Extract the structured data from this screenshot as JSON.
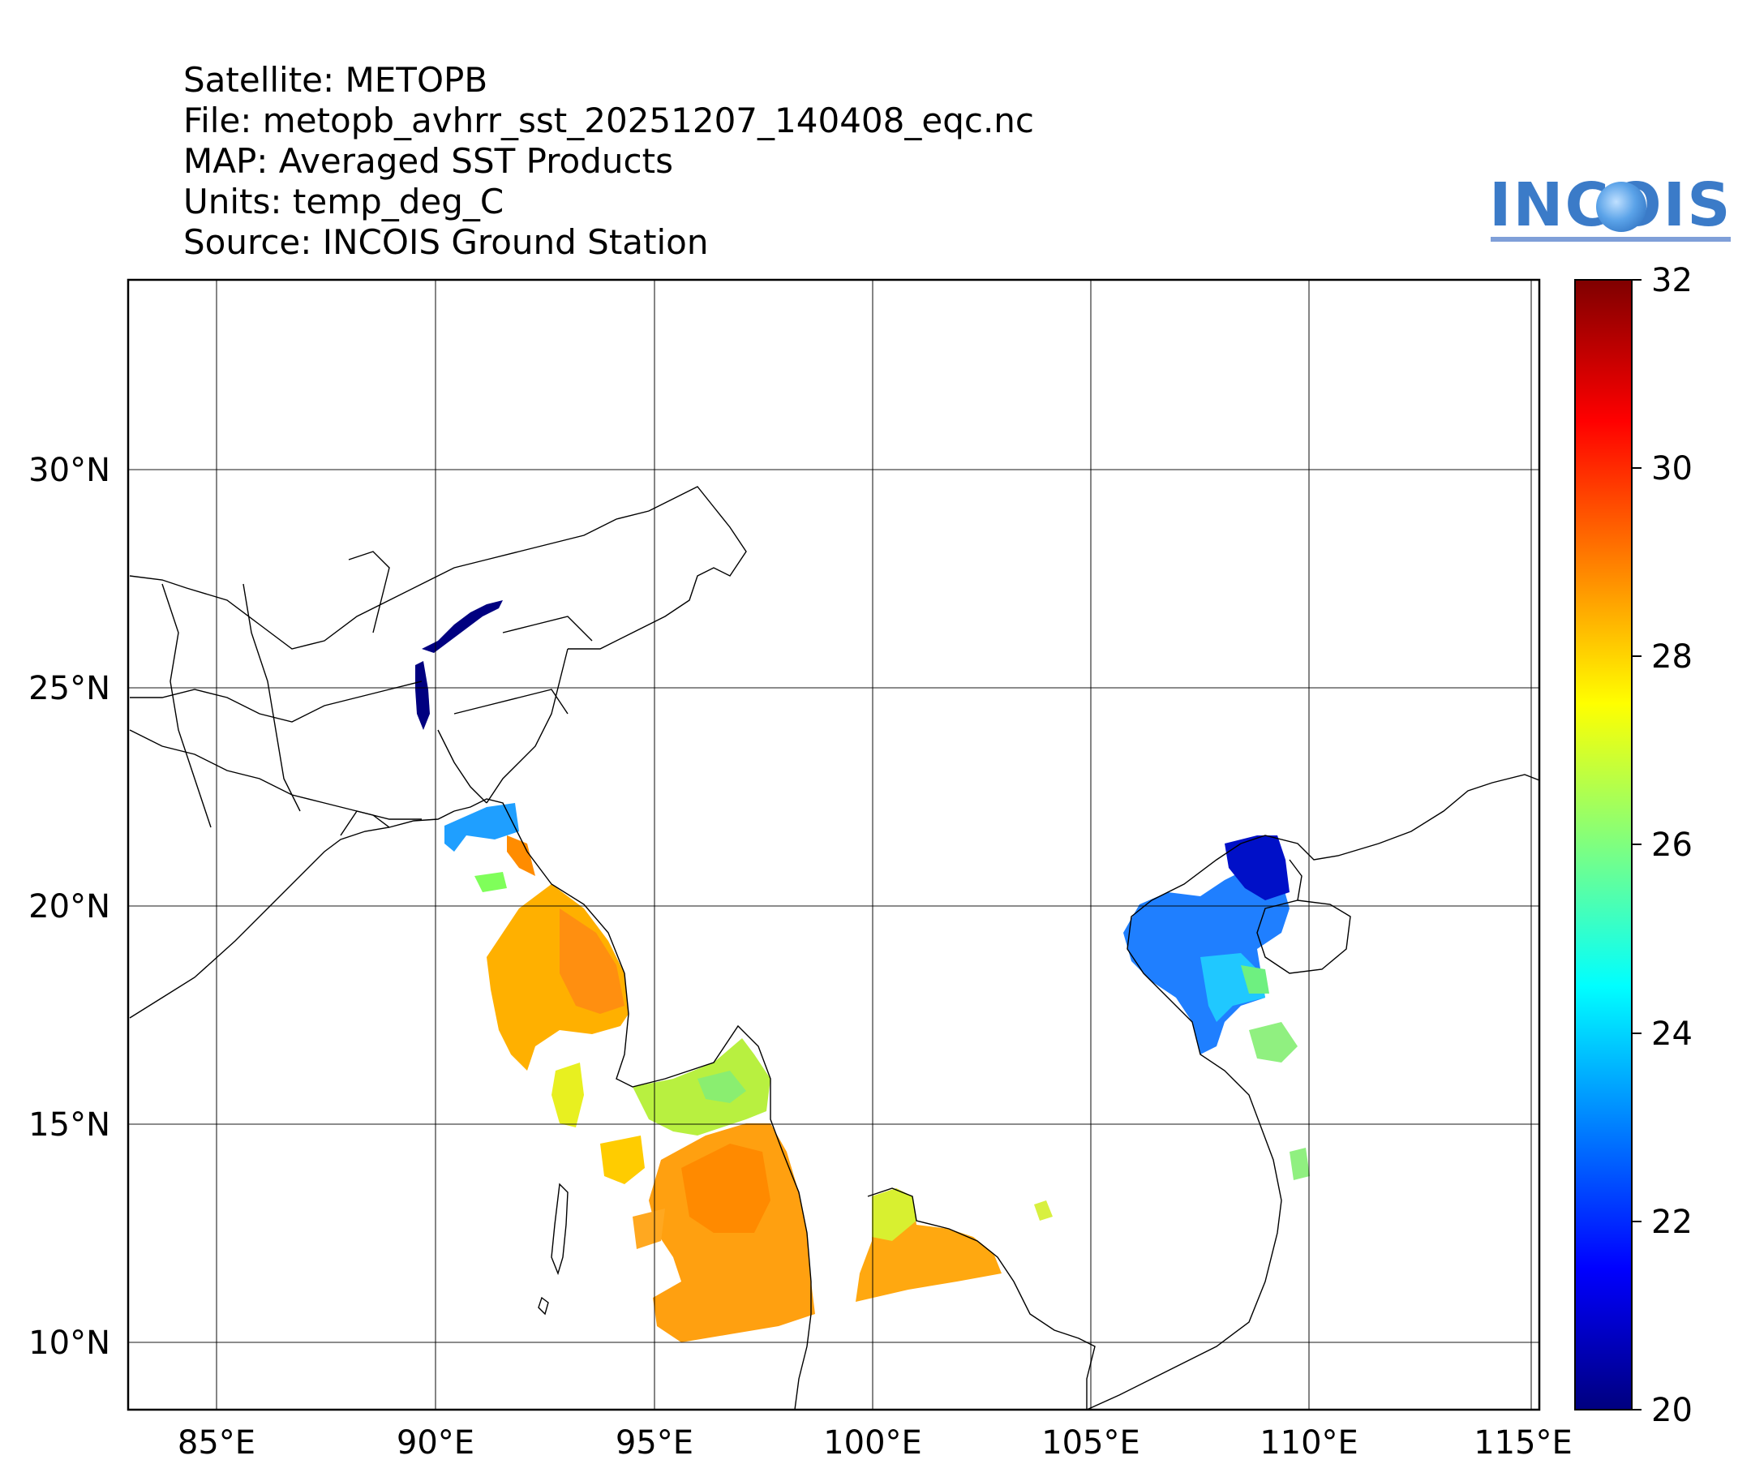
{
  "header": {
    "satellite": "Satellite: METOPB",
    "file": "File: metopb_avhrr_sst_20251207_140408_eqc.nc",
    "map": "MAP: Averaged SST Products",
    "units": "Units: temp_deg_C",
    "source": "Source: INCOIS Ground Station"
  },
  "logo": {
    "text": "INCOIS"
  },
  "map": {
    "lon_range": [
      83,
      115
    ],
    "lat_range": [
      8.5,
      34.5
    ],
    "lon_ticks": [
      "85°E",
      "90°E",
      "95°E",
      "100°E",
      "105°E",
      "110°E",
      "115°E"
    ],
    "lat_ticks": [
      "30°N",
      "25°N",
      "20°N",
      "15°N",
      "10°N"
    ]
  },
  "colorbar": {
    "min": 20,
    "max": 32,
    "ticks": [
      "32",
      "30",
      "28",
      "26",
      "24",
      "22",
      "20"
    ],
    "colormap": [
      "#00007f",
      "#0000ff",
      "#007fff",
      "#00ffff",
      "#7fff7f",
      "#ffff00",
      "#ff7f00",
      "#ff0000",
      "#7f0000"
    ]
  }
}
